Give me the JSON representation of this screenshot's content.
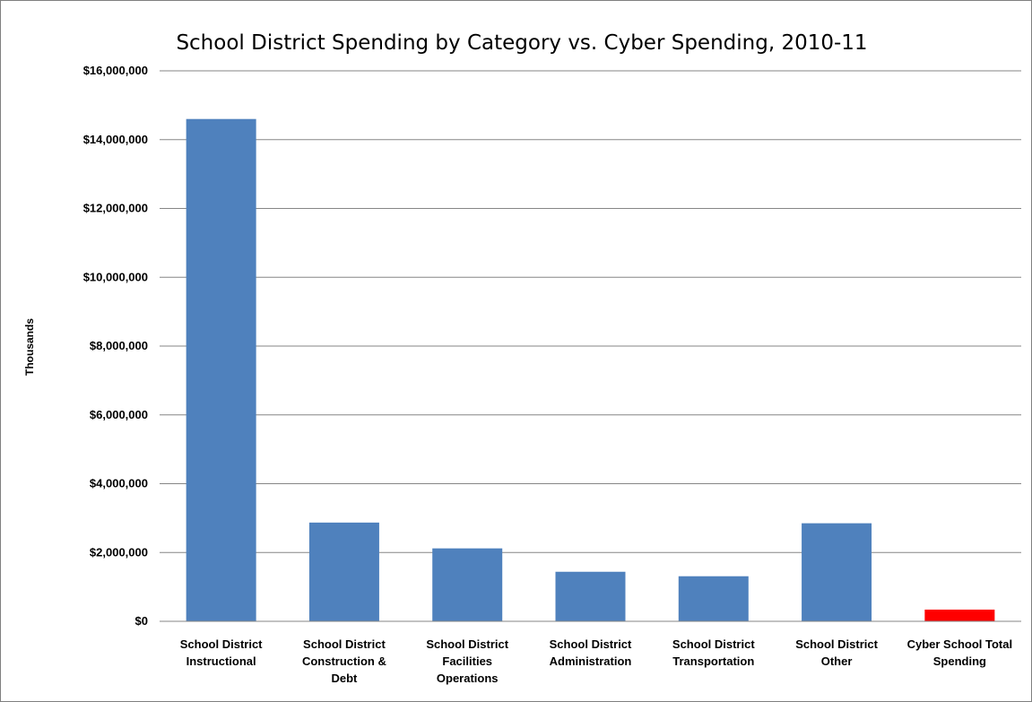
{
  "chart_data": {
    "type": "bar",
    "title": "School District Spending by Category vs. Cyber Spending, 2010-11",
    "ylabel": "Thousands",
    "xlabel": "",
    "ylim": [
      0,
      16000000
    ],
    "yticks": [
      0,
      2000000,
      4000000,
      6000000,
      8000000,
      10000000,
      12000000,
      14000000,
      16000000
    ],
    "ytick_labels": [
      "$0",
      "$2,000,000",
      "$4,000,000",
      "$6,000,000",
      "$8,000,000",
      "$10,000,000",
      "$12,000,000",
      "$14,000,000",
      "$16,000,000"
    ],
    "grid": true,
    "legend": "none",
    "categories": [
      [
        "School District",
        "Instructional"
      ],
      [
        "School District",
        "Construction &",
        "Debt"
      ],
      [
        "School District",
        "Facilities",
        "Operations"
      ],
      [
        "School District",
        "Administration"
      ],
      [
        "School District",
        "Transportation"
      ],
      [
        "School District",
        "Other"
      ],
      [
        "Cyber School Total",
        "Spending"
      ]
    ],
    "values": [
      14600000,
      2870000,
      2120000,
      1440000,
      1310000,
      2850000,
      340000
    ],
    "colors": [
      "#4f81bd",
      "#4f81bd",
      "#4f81bd",
      "#4f81bd",
      "#4f81bd",
      "#4f81bd",
      "#ff0000"
    ]
  }
}
